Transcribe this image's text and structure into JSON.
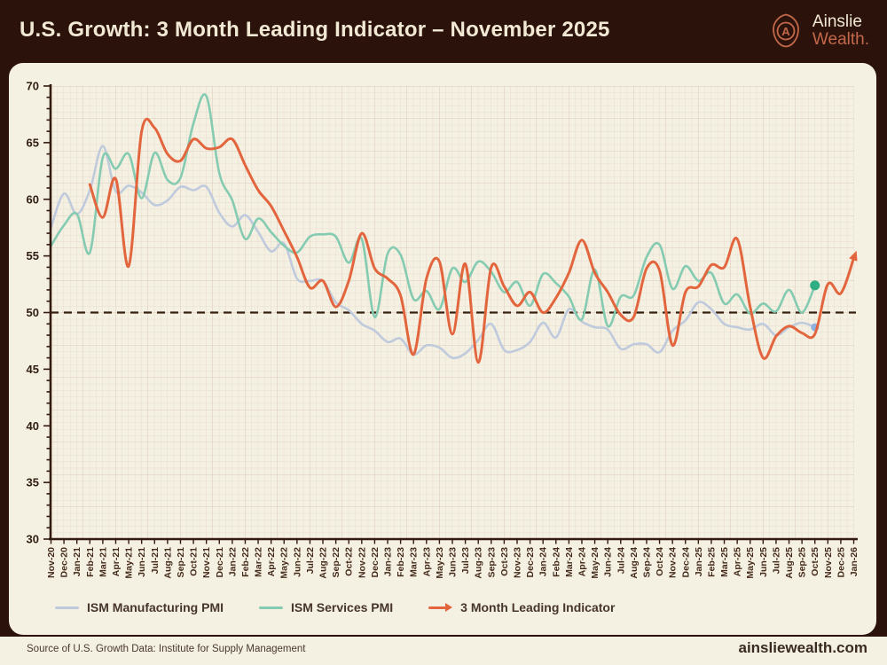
{
  "header": {
    "title": "U.S. Growth: 3 Month Leading Indicator – November 2025",
    "brand": {
      "line1": "Ainslie",
      "line2": "Wealth.",
      "logo_letter": "A"
    }
  },
  "colors": {
    "background": "#2b130c",
    "panel": "#f5f1e2",
    "accent_coral": "#c4684a",
    "text_dark": "#46352b",
    "axis": "#33190e",
    "baseline_dash": "#38200f"
  },
  "chart_data": {
    "type": "line",
    "title": "U.S. Growth: 3 Month Leading Indicator – November 2025",
    "xlabel": "",
    "ylabel": "",
    "ylim": [
      30,
      70
    ],
    "yticks": [
      30,
      35,
      40,
      45,
      50,
      55,
      60,
      65,
      70
    ],
    "baseline": 50,
    "grid": true,
    "legend_position": "bottom",
    "x_labels": [
      "Nov-20",
      "Dec-20",
      "Jan-21",
      "Feb-21",
      "Mar-21",
      "Apr-21",
      "May-21",
      "Jun-21",
      "Jul-21",
      "Aug-21",
      "Sep-21",
      "Oct-21",
      "Nov-21",
      "Dec-21",
      "Jan-22",
      "Feb-22",
      "Mar-22",
      "Apr-22",
      "May-22",
      "Jun-22",
      "Jul-22",
      "Aug-22",
      "Sep-22",
      "Oct-22",
      "Nov-22",
      "Dec-22",
      "Jan-23",
      "Feb-23",
      "Mar-23",
      "Apr-23",
      "May-23",
      "Jun-23",
      "Jul-23",
      "Aug-23",
      "Sep-23",
      "Oct-23",
      "Nov-23",
      "Dec-23",
      "Jan-24",
      "Feb-24",
      "Mar-24",
      "Apr-24",
      "May-24",
      "Jun-24",
      "Jul-24",
      "Aug-24",
      "Sep-24",
      "Oct-24",
      "Nov-24",
      "Dec-24",
      "Jan-25",
      "Feb-25",
      "Mar-25",
      "Apr-25",
      "May-25",
      "Jun-25",
      "Jul-25",
      "Aug-25",
      "Sep-25",
      "Oct-25",
      "Nov-25",
      "Dec-25",
      "Jan-26"
    ],
    "series": [
      {
        "name": "ISM Manufacturing PMI",
        "color": "#bfcadd",
        "width": 2.6,
        "start_index": 0,
        "end_marker": "dot",
        "end_marker_color": "#8fb2e2",
        "end_marker_radius": 4.5,
        "values": [
          57.5,
          60.5,
          58.7,
          60.8,
          64.7,
          60.7,
          61.2,
          60.6,
          59.5,
          59.9,
          61.1,
          60.8,
          61.1,
          58.8,
          57.6,
          58.6,
          57.1,
          55.4,
          56.1,
          53.0,
          52.8,
          52.8,
          50.9,
          50.2,
          49.0,
          48.4,
          47.4,
          47.7,
          46.3,
          47.1,
          46.9,
          46.0,
          46.4,
          47.6,
          49.0,
          46.7,
          46.7,
          47.4,
          49.1,
          47.8,
          50.3,
          49.2,
          48.7,
          48.5,
          46.8,
          47.2,
          47.2,
          46.5,
          48.4,
          49.3,
          50.9,
          50.3,
          49.0,
          48.7,
          48.5,
          49.0,
          48.0,
          48.7,
          49.1,
          48.7
        ]
      },
      {
        "name": "ISM Services PMI",
        "color": "#85cbb2",
        "width": 2.6,
        "start_index": 0,
        "end_marker": "dot",
        "end_marker_color": "#2fae83",
        "end_marker_radius": 5.5,
        "values": [
          55.9,
          57.7,
          58.7,
          55.3,
          63.7,
          62.7,
          64.0,
          60.1,
          64.1,
          61.7,
          61.9,
          66.7,
          69.1,
          62.3,
          59.9,
          56.5,
          58.3,
          57.1,
          55.9,
          55.3,
          56.7,
          56.9,
          56.7,
          54.4,
          56.5,
          49.6,
          55.2,
          55.1,
          51.2,
          51.9,
          50.3,
          53.9,
          52.7,
          54.5,
          53.6,
          51.8,
          52.7,
          50.6,
          53.4,
          52.6,
          51.4,
          49.4,
          53.8,
          48.8,
          51.4,
          51.5,
          54.9,
          56.0,
          52.1,
          54.1,
          52.8,
          53.5,
          50.8,
          51.6,
          49.9,
          50.8,
          50.1,
          52.0,
          50.0,
          52.4
        ]
      },
      {
        "name": "3 Month Leading Indicator",
        "color": "#e2653d",
        "width": 3,
        "start_index": 3,
        "end_marker": "arrow",
        "values": [
          61.3,
          58.4,
          61.8,
          54.1,
          66.0,
          66.3,
          64.0,
          63.4,
          65.3,
          64.5,
          64.6,
          65.3,
          63.0,
          60.8,
          59.4,
          57.2,
          54.9,
          52.2,
          52.8,
          50.5,
          52.8,
          57.0,
          53.9,
          53.0,
          51.5,
          46.3,
          53.0,
          54.5,
          48.1,
          54.3,
          45.6,
          54.0,
          52.3,
          50.6,
          51.8,
          50.0,
          51.3,
          53.5,
          56.4,
          53.5,
          51.8,
          49.8,
          49.6,
          53.9,
          53.7,
          47.1,
          51.8,
          52.3,
          54.2,
          54.0,
          56.5,
          50.5,
          46.0,
          47.9,
          48.8,
          48.2,
          48.1,
          52.5,
          51.7,
          54.8
        ]
      }
    ]
  },
  "footer": {
    "source": "Source of U.S. Growth Data: Institute for Supply Management",
    "website": "ainsliewealth.com"
  }
}
